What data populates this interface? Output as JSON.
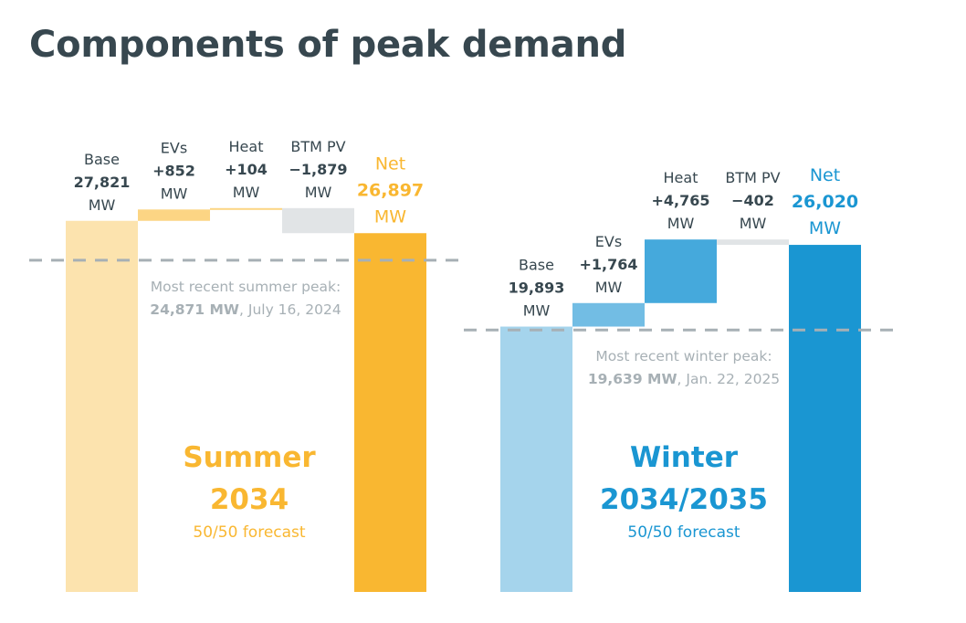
{
  "title": "Components of peak demand",
  "colors": {
    "summer_base": "#fce3ae",
    "summer_evs": "#fcd584",
    "summer_heat": "#fcd584",
    "summer_btm": "#e1e4e6",
    "summer_net": "#f9b731",
    "winter_base": "#a5d4ec",
    "winter_evs": "#72bde4",
    "winter_heat": "#45a9dc",
    "winter_btm": "#e1e4e6",
    "winter_net": "#1a96d2",
    "peak_line": "#a7b0b5",
    "summer_text": "#f9b731",
    "winter_text": "#1a96d2"
  },
  "chart_data": [
    {
      "type": "waterfall",
      "season": "Summer",
      "year": "2034",
      "subtitle": "50/50 forecast",
      "components": [
        {
          "key": "base",
          "label": "Base",
          "value": 27821,
          "display": "27,821",
          "unit": "MW"
        },
        {
          "key": "evs",
          "label": "EVs",
          "value": 852,
          "display": "+852",
          "unit": "MW"
        },
        {
          "key": "heat",
          "label": "Heat",
          "value": 104,
          "display": "+104",
          "unit": "MW"
        },
        {
          "key": "btm",
          "label": "BTM PV",
          "value": -1879,
          "display": "−1,879",
          "unit": "MW"
        },
        {
          "key": "net",
          "label": "Net",
          "value": 26897,
          "display": "26,897",
          "unit": "MW"
        }
      ],
      "recent_peak": {
        "value": 24871,
        "label": "Most recent summer peak:",
        "value_text": "24,871 MW",
        "date_text": ", July 16, 2024"
      }
    },
    {
      "type": "waterfall",
      "season": "Winter",
      "year": "2034/2035",
      "subtitle": "50/50 forecast",
      "components": [
        {
          "key": "base",
          "label": "Base",
          "value": 19893,
          "display": "19,893",
          "unit": "MW"
        },
        {
          "key": "evs",
          "label": "EVs",
          "value": 1764,
          "display": "+1,764",
          "unit": "MW"
        },
        {
          "key": "heat",
          "label": "Heat",
          "value": 4765,
          "display": "+4,765",
          "unit": "MW"
        },
        {
          "key": "btm",
          "label": "BTM PV",
          "value": -402,
          "display": "−402",
          "unit": "MW"
        },
        {
          "key": "net",
          "label": "Net",
          "value": 26020,
          "display": "26,020",
          "unit": "MW"
        }
      ],
      "recent_peak": {
        "value": 19639,
        "label": "Most recent winter peak:",
        "value_text": "19,639 MW",
        "date_text": ", Jan. 22, 2025"
      }
    }
  ]
}
